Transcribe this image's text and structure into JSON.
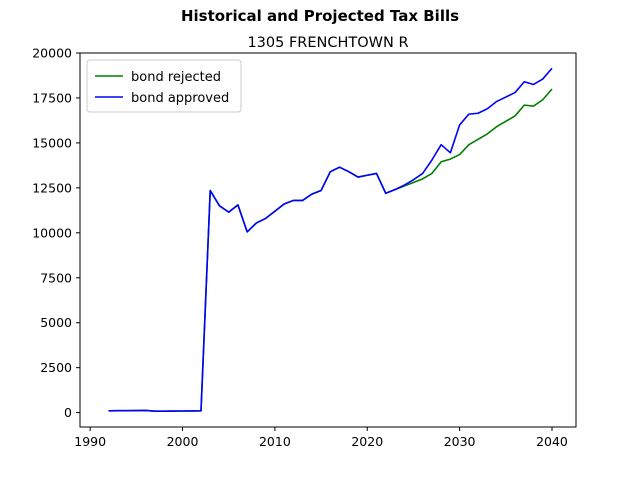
{
  "suptitle": "Historical and Projected Tax Bills",
  "chart_data": {
    "type": "line",
    "title": "1305 FRENCHTOWN R",
    "xlabel": "",
    "ylabel": "",
    "xlim": [
      1988.9,
      2042.6
    ],
    "ylim": [
      -800,
      20000
    ],
    "xticks": [
      1990,
      2000,
      2010,
      2020,
      2030,
      2040
    ],
    "yticks": [
      0,
      2500,
      5000,
      7500,
      10000,
      12500,
      15000,
      17500,
      20000
    ],
    "legend_position": "upper left",
    "grid": false,
    "x": [
      1992,
      1993,
      1994,
      1995,
      1996,
      1997,
      1998,
      1999,
      2000,
      2001,
      2002,
      2003,
      2004,
      2005,
      2006,
      2007,
      2008,
      2009,
      2010,
      2011,
      2012,
      2013,
      2014,
      2015,
      2016,
      2017,
      2018,
      2019,
      2020,
      2021,
      2022,
      2023,
      2024,
      2025,
      2026,
      2027,
      2028,
      2029,
      2030,
      2031,
      2032,
      2033,
      2034,
      2035,
      2036,
      2037,
      2038,
      2039,
      2040
    ],
    "series": [
      {
        "name": "bond rejected",
        "color": "#008000",
        "values": [
          100,
          110,
          110,
          115,
          120,
          80,
          80,
          85,
          90,
          95,
          100,
          12350,
          11500,
          11150,
          11550,
          10050,
          10550,
          10800,
          11200,
          11600,
          11800,
          11800,
          12150,
          12350,
          13400,
          13650,
          13400,
          13100,
          13200,
          13300,
          12200,
          12400,
          12600,
          12800,
          13000,
          13300,
          13950,
          14100,
          14350,
          14900,
          15200,
          15500,
          15900,
          16200,
          16500,
          17100,
          17050,
          17400,
          18000
        ]
      },
      {
        "name": "bond approved",
        "color": "#0000ff",
        "values": [
          100,
          110,
          110,
          115,
          120,
          80,
          80,
          85,
          90,
          95,
          100,
          12350,
          11500,
          11150,
          11550,
          10050,
          10550,
          10800,
          11200,
          11600,
          11800,
          11800,
          12150,
          12350,
          13400,
          13650,
          13400,
          13100,
          13200,
          13300,
          12200,
          12400,
          12650,
          12950,
          13300,
          14050,
          14900,
          14450,
          16000,
          16600,
          16650,
          16900,
          17300,
          17550,
          17800,
          18400,
          18250,
          18550,
          19150
        ]
      }
    ]
  }
}
